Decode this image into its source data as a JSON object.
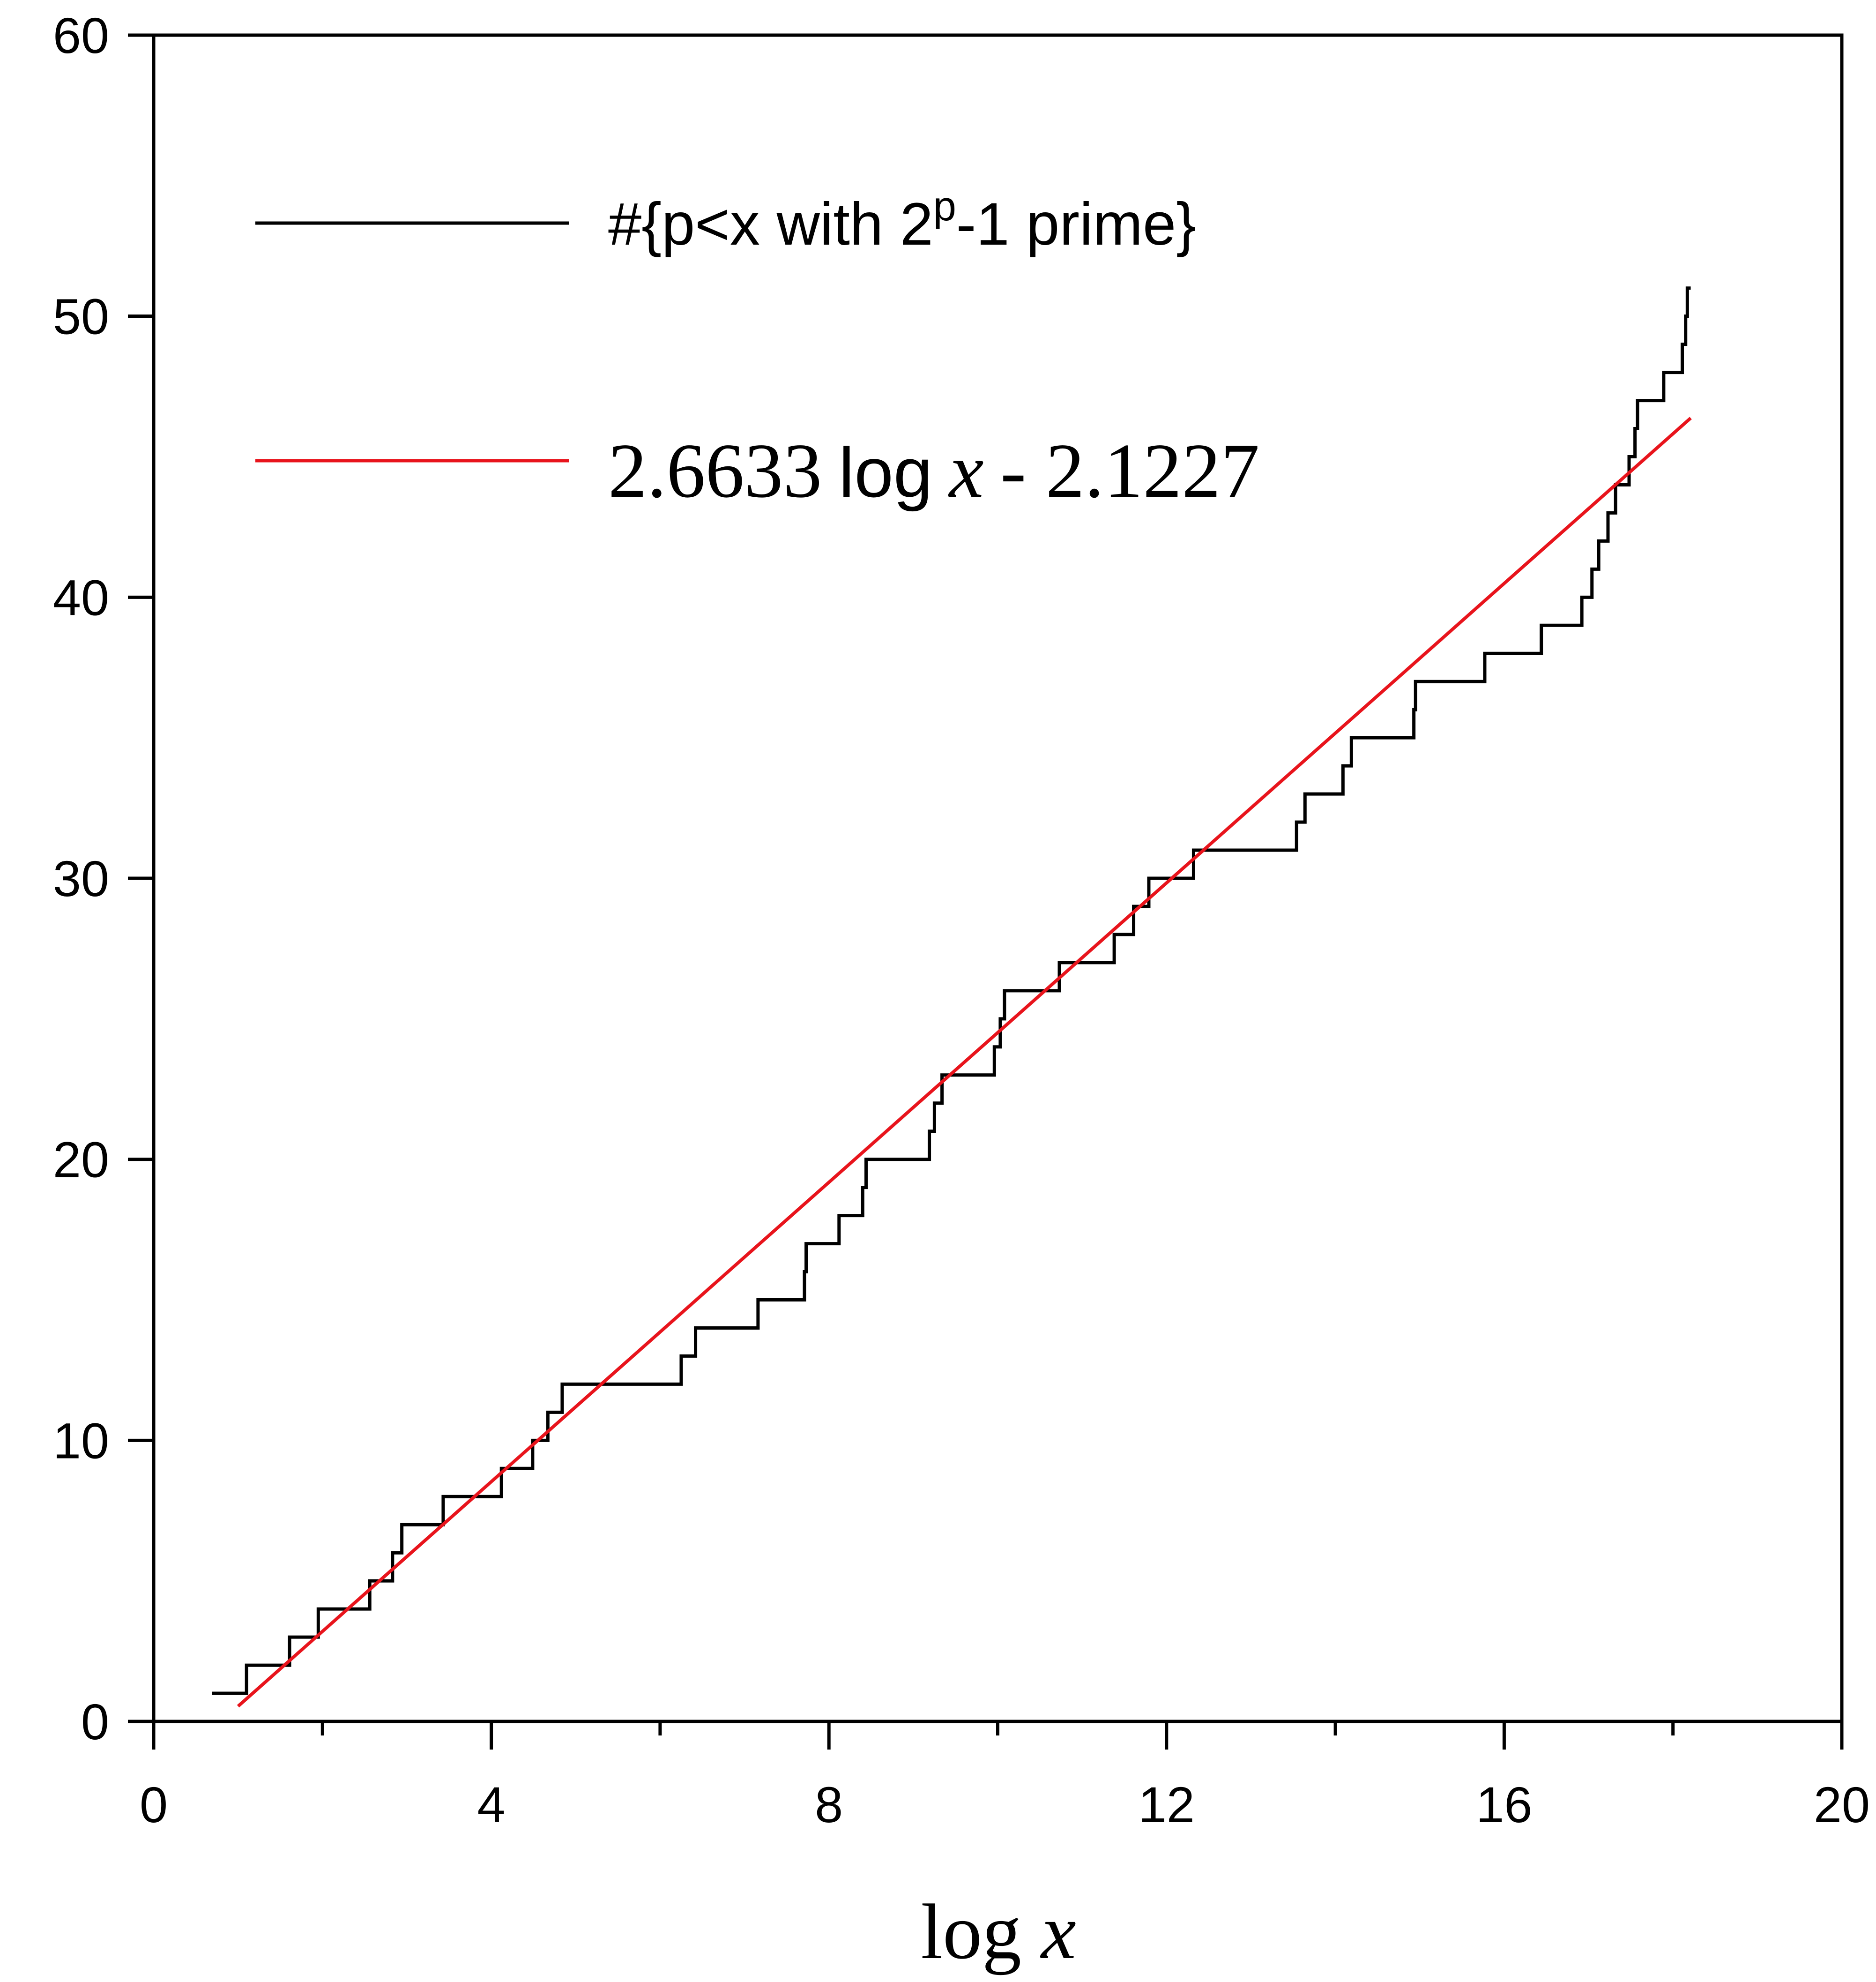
{
  "chart_data": {
    "type": "line",
    "title": "",
    "xlabel": {
      "prefix": "log",
      "var": "x"
    },
    "ylabel": "",
    "xlim": [
      0,
      20
    ],
    "ylim": [
      0,
      60
    ],
    "x_ticks": [
      0,
      4,
      8,
      12,
      16,
      20
    ],
    "x_tick_labels": [
      "0",
      "4",
      "8",
      "12",
      "16",
      "20"
    ],
    "y_ticks": [
      0,
      10,
      20,
      30,
      40,
      50,
      60
    ],
    "y_tick_labels": [
      "0",
      "10",
      "20",
      "30",
      "40",
      "50",
      "60"
    ],
    "grid": false,
    "legend_position": "top-left",
    "series": [
      {
        "name": "#{p<x with 2^p-1 prime}",
        "legend": {
          "pre": "#{p<x with 2",
          "sup": "p",
          "post": "-1 prime}"
        },
        "color": "#000000",
        "style": "step",
        "x": [
          0.69,
          1.1,
          1.61,
          1.95,
          2.56,
          2.83,
          2.94,
          3.43,
          4.12,
          4.49,
          4.67,
          4.84,
          6.25,
          6.42,
          7.16,
          7.71,
          7.73,
          8.12,
          8.4,
          8.44,
          9.19,
          9.25,
          9.34,
          9.96,
          10.03,
          10.08,
          10.73,
          11.38,
          11.61,
          11.79,
          12.32,
          13.54,
          13.64,
          14.09,
          14.19,
          14.93,
          14.95,
          15.77,
          16.44,
          16.92,
          17.04,
          17.12,
          17.23,
          17.32,
          17.48,
          17.55,
          17.58,
          17.89,
          18.11,
          18.15,
          18.17,
          18.21
        ],
        "y": [
          1,
          2,
          3,
          4,
          5,
          6,
          7,
          8,
          9,
          10,
          11,
          12,
          13,
          14,
          15,
          16,
          17,
          18,
          19,
          20,
          21,
          22,
          23,
          24,
          25,
          26,
          27,
          28,
          29,
          30,
          31,
          32,
          33,
          34,
          35,
          36,
          37,
          38,
          39,
          40,
          41,
          42,
          43,
          44,
          45,
          46,
          47,
          48,
          49,
          50,
          51,
          51
        ],
        "annotation": ""
      },
      {
        "name": "2.6633 log x - 2.1227",
        "legend": {
          "coef": "2.6633",
          "fn": "log",
          "var": "x",
          "rest": "- 2.1227"
        },
        "color": "#e8141c",
        "style": "line",
        "slope": 2.6633,
        "intercept": -2.1227,
        "x_range": [
          1.0,
          18.21
        ]
      }
    ]
  }
}
